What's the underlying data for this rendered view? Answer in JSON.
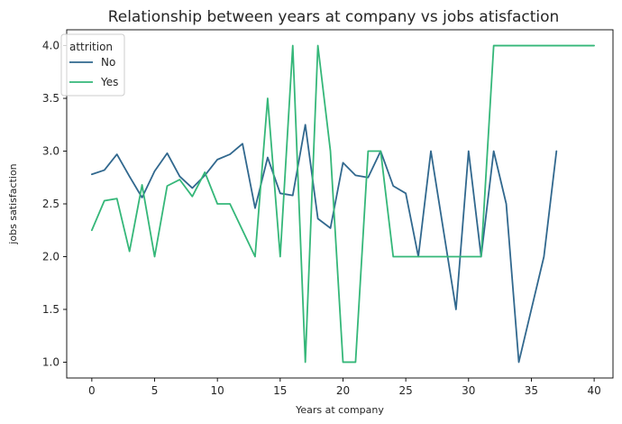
{
  "chart_data": {
    "type": "line",
    "title": "Relationship between years at company vs jobs atisfaction",
    "xlabel": "Years at company",
    "ylabel": "jobs satisfaction",
    "xlim": [
      -2,
      41.5
    ],
    "ylim": [
      0.85,
      4.15
    ],
    "xticks": [
      0,
      5,
      10,
      15,
      20,
      25,
      30,
      35,
      40
    ],
    "yticks": [
      1.0,
      1.5,
      2.0,
      2.5,
      3.0,
      3.5,
      4.0
    ],
    "ytick_labels": [
      "1.0",
      "1.5",
      "2.0",
      "2.5",
      "3.0",
      "3.5",
      "4.0"
    ],
    "grid": false,
    "legend": {
      "title": "attrition",
      "position": "top-left"
    },
    "series": [
      {
        "name": "No",
        "color": "#31688e",
        "x": [
          0,
          1,
          2,
          3,
          4,
          5,
          6,
          7,
          8,
          9,
          10,
          11,
          12,
          13,
          14,
          15,
          16,
          17,
          18,
          19,
          20,
          21,
          22,
          23,
          24,
          25,
          26,
          27,
          28,
          29,
          30,
          31,
          32,
          33,
          34,
          35,
          36,
          37
        ],
        "y": [
          2.78,
          2.82,
          2.97,
          2.76,
          2.56,
          2.81,
          2.98,
          2.76,
          2.65,
          2.77,
          2.92,
          2.97,
          3.07,
          2.46,
          2.94,
          2.6,
          2.58,
          3.25,
          2.36,
          2.27,
          2.89,
          2.77,
          2.75,
          3.0,
          2.67,
          2.6,
          2.0,
          3.0,
          2.25,
          1.5,
          3.0,
          2.0,
          3.0,
          2.5,
          1.0,
          1.5,
          2.0,
          3.0
        ]
      },
      {
        "name": "Yes",
        "color": "#35b779",
        "x": [
          0,
          1,
          2,
          3,
          4,
          5,
          6,
          7,
          8,
          9,
          10,
          11,
          13,
          14,
          15,
          16,
          17,
          18,
          19,
          20,
          21,
          22,
          23,
          24,
          31,
          32,
          40
        ],
        "y": [
          2.25,
          2.53,
          2.55,
          2.05,
          2.68,
          2.0,
          2.67,
          2.73,
          2.57,
          2.8,
          2.5,
          2.5,
          2.0,
          3.5,
          2.0,
          4.0,
          1.0,
          4.0,
          3.0,
          1.0,
          1.0,
          3.0,
          3.0,
          2.0,
          2.0,
          4.0,
          4.0
        ]
      }
    ]
  }
}
